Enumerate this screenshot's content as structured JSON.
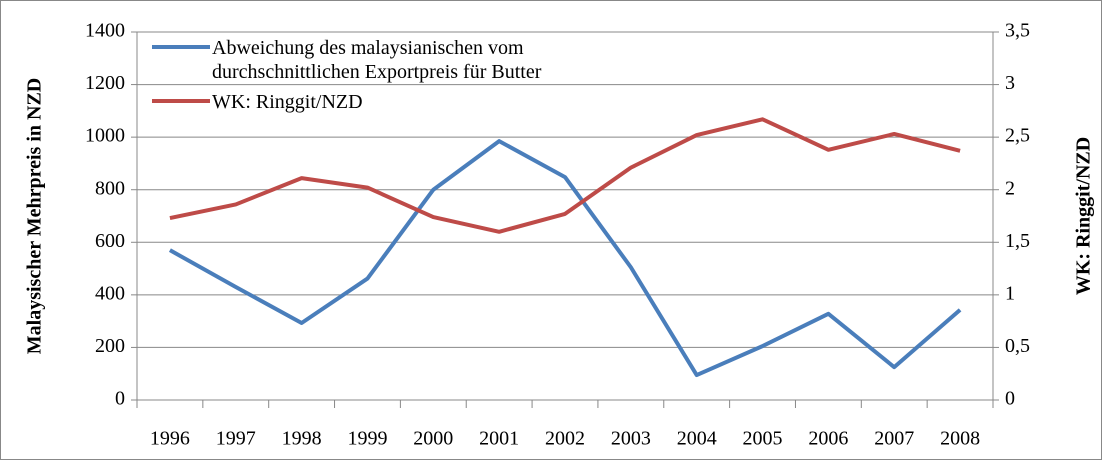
{
  "chart_data": {
    "type": "line",
    "categories": [
      "1996",
      "1997",
      "1998",
      "1999",
      "2000",
      "2001",
      "2002",
      "2003",
      "2004",
      "2005",
      "2006",
      "2007",
      "2008"
    ],
    "series": [
      {
        "name": "Abweichung des malaysianischen vom durchschnittlichen Exportpreis für Butter",
        "color": "#4a7ebb",
        "values": [
          570,
          430,
          293,
          462,
          800,
          985,
          848,
          505,
          95,
          205,
          328,
          125,
          343
        ]
      },
      {
        "name": "WK: Ringgit/NZD",
        "color": "#be4b48",
        "axis": "y2",
        "values": [
          1.73,
          1.86,
          2.11,
          2.02,
          1.74,
          1.6,
          1.77,
          2.21,
          2.52,
          2.67,
          2.38,
          2.53,
          2.37
        ]
      }
    ],
    "ylabel": "Malaysischer Mehrpreis in NZD",
    "y2label": "WK: Ringgit/NZD",
    "ylim": [
      0,
      1400
    ],
    "yticks": [
      0,
      200,
      400,
      600,
      800,
      1000,
      1200,
      1400
    ],
    "y2lim": [
      0,
      3.5
    ],
    "y2ticks": [
      0,
      {
        "value": 0.5,
        "label": "0,5"
      },
      1,
      {
        "value": 1.5,
        "label": "1,5"
      },
      2,
      {
        "value": 2.5,
        "label": "2,5"
      },
      3,
      {
        "value": 3.5,
        "label": "3,5"
      }
    ],
    "grid": true,
    "legend": "upper left"
  }
}
